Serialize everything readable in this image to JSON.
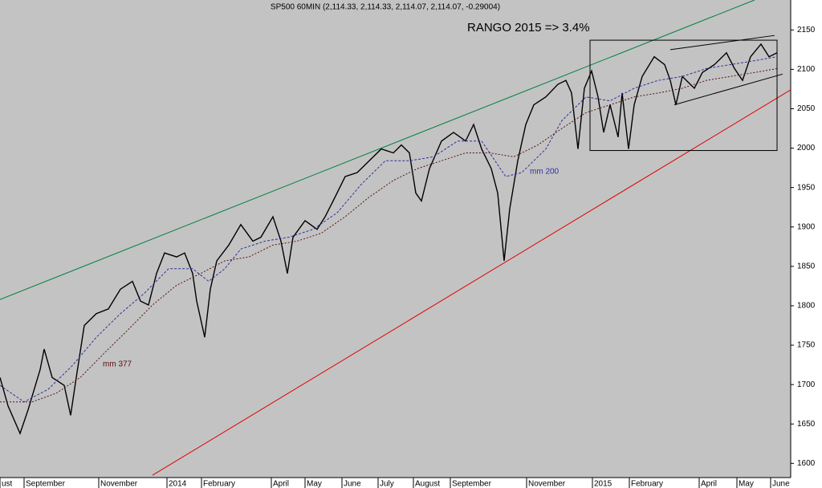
{
  "chart_data": {
    "type": "line",
    "title": "SP500 60MIN (2,114.33, 2,114.33, 2,114.07, 2,114.07, -0.29004)",
    "annotation": "RANGO 2015 => 3.4%",
    "xlim": [
      0,
      985
    ],
    "ylim": [
      1582,
      2188
    ],
    "yticks": [
      1600,
      1650,
      1700,
      1750,
      1800,
      1850,
      1900,
      1950,
      2000,
      2050,
      2100,
      2150
    ],
    "xticks": [
      {
        "value": 0,
        "label": "ust"
      },
      {
        "value": 30,
        "label": "September"
      },
      {
        "value": 123,
        "label": "November"
      },
      {
        "value": 208,
        "label": "2014"
      },
      {
        "value": 251,
        "label": "February"
      },
      {
        "value": 338,
        "label": "April"
      },
      {
        "value": 380,
        "label": "May"
      },
      {
        "value": 426,
        "label": "June"
      },
      {
        "value": 471,
        "label": "July"
      },
      {
        "value": 515,
        "label": "August"
      },
      {
        "value": 561,
        "label": "September"
      },
      {
        "value": 656,
        "label": "November"
      },
      {
        "value": 738,
        "label": "2015"
      },
      {
        "value": 784,
        "label": "February"
      },
      {
        "value": 871,
        "label": "April"
      },
      {
        "value": 918,
        "label": "May"
      },
      {
        "value": 960,
        "label": "June"
      }
    ],
    "series": [
      {
        "color": "#000000",
        "width": 1.4,
        "x": [
          0,
          10,
          25,
          35,
          50,
          55,
          65,
          80,
          88,
          95,
          105,
          120,
          135,
          150,
          165,
          175,
          185,
          195,
          205,
          220,
          230,
          240,
          245,
          255,
          262,
          270,
          285,
          300,
          315,
          325,
          340,
          350,
          358,
          365,
          380,
          395,
          405,
          415,
          430,
          445,
          460,
          475,
          490,
          500,
          510,
          518,
          525,
          535,
          550,
          565,
          580,
          590,
          600,
          612,
          620,
          628,
          635,
          645,
          655,
          665,
          680,
          695,
          705,
          712,
          720,
          728,
          737,
          745,
          752,
          760,
          770,
          775,
          783,
          790,
          800,
          815,
          828,
          835,
          842,
          850,
          865,
          875,
          890,
          905,
          915,
          925,
          935,
          948,
          958,
          968
        ],
        "values": [
          1709,
          1673,
          1638,
          1668,
          1719,
          1745,
          1709,
          1699,
          1661,
          1709,
          1775,
          1790,
          1796,
          1821,
          1831,
          1806,
          1801,
          1841,
          1867,
          1862,
          1867,
          1841,
          1806,
          1760,
          1821,
          1857,
          1877,
          1903,
          1882,
          1887,
          1913,
          1882,
          1841,
          1887,
          1908,
          1897,
          1913,
          1933,
          1964,
          1969,
          1984,
          1999,
          1994,
          2004,
          1994,
          1943,
          1933,
          1974,
          2009,
          2020,
          2009,
          2030,
          1999,
          1974,
          1943,
          1857,
          1923,
          1984,
          2030,
          2055,
          2065,
          2081,
          2086,
          2070,
          1999,
          2076,
          2098,
          2065,
          2020,
          2055,
          2014,
          2070,
          1999,
          2055,
          2091,
          2116,
          2106,
          2086,
          2055,
          2091,
          2076,
          2096,
          2106,
          2121,
          2101,
          2086,
          2116,
          2132,
          2116,
          2121
        ]
      },
      {
        "name": "mm 200",
        "color": "#3030a0",
        "dash": "3,2",
        "width": 1,
        "x": [
          0,
          30,
          60,
          90,
          120,
          150,
          180,
          210,
          240,
          260,
          280,
          300,
          330,
          360,
          390,
          420,
          450,
          480,
          510,
          540,
          570,
          600,
          630,
          650,
          680,
          700,
          730,
          760,
          790,
          820,
          850,
          880,
          910,
          940,
          968
        ],
        "values": [
          1699,
          1678,
          1694,
          1724,
          1760,
          1790,
          1816,
          1847,
          1847,
          1831,
          1847,
          1872,
          1882,
          1887,
          1897,
          1918,
          1954,
          1984,
          1984,
          1989,
          2009,
          2009,
          1964,
          1969,
          1999,
          2035,
          2065,
          2060,
          2076,
          2086,
          2091,
          2101,
          2106,
          2111,
          2116
        ]
      },
      {
        "name": "mm 377",
        "color": "#5a1010",
        "dash": "2,2",
        "width": 1,
        "x": [
          0,
          40,
          70,
          100,
          130,
          160,
          190,
          220,
          250,
          280,
          310,
          340,
          370,
          400,
          430,
          460,
          490,
          520,
          550,
          580,
          610,
          640,
          670,
          700,
          730,
          760,
          790,
          820,
          850,
          880,
          910,
          940,
          968
        ],
        "values": [
          1678,
          1678,
          1689,
          1709,
          1740,
          1770,
          1801,
          1826,
          1841,
          1857,
          1862,
          1877,
          1882,
          1892,
          1913,
          1938,
          1959,
          1974,
          1984,
          1994,
          1994,
          1989,
          2004,
          2025,
          2045,
          2055,
          2065,
          2070,
          2076,
          2086,
          2091,
          2096,
          2101
        ]
      }
    ],
    "lines": [
      {
        "color": "#008040",
        "x": [
          0,
          940
        ],
        "values": [
          1808,
          2188
        ]
      },
      {
        "color": "#e00000",
        "x": [
          190,
          985
        ],
        "values": [
          1585,
          2074
        ]
      },
      {
        "color": "#000000",
        "x": [
          835,
          965
        ],
        "values": [
          2125,
          2143
        ]
      },
      {
        "color": "#000000",
        "x": [
          840,
          975
        ],
        "values": [
          2055,
          2094
        ]
      }
    ],
    "box": {
      "x": [
        735,
        968
      ],
      "values": [
        1997,
        2137
      ]
    }
  }
}
